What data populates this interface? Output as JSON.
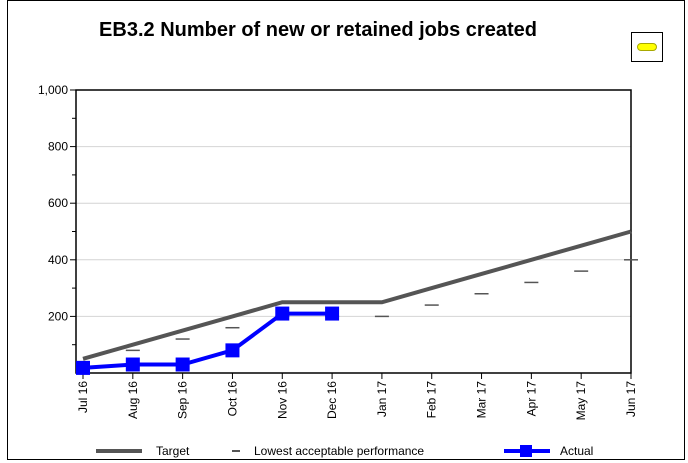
{
  "chart_data": {
    "type": "line",
    "title": "EB3.2 Number of new or retained jobs created",
    "categories": [
      "Jul 16",
      "Aug 16",
      "Sep 16",
      "Oct 16",
      "Nov 16",
      "Dec 16",
      "Jan 17",
      "Feb 17",
      "Mar 17",
      "Apr 17",
      "May 17",
      "Jun 17"
    ],
    "ylim": [
      0,
      1000
    ],
    "yticks": [
      200,
      400,
      600,
      800,
      1000
    ],
    "ytick_labels": [
      "200",
      "400",
      "600",
      "800",
      "1,000"
    ],
    "grid": true,
    "legend_position": "bottom",
    "series": [
      {
        "name": "Target",
        "style": "line",
        "color": "#555555",
        "values": [
          50,
          100,
          150,
          200,
          250,
          250,
          250,
          300,
          350,
          400,
          450,
          500
        ]
      },
      {
        "name": "Lowest acceptable performance",
        "style": "dash-marker",
        "color": "#555555",
        "values": [
          40,
          80,
          120,
          160,
          200,
          200,
          200,
          240,
          280,
          320,
          360,
          400
        ]
      },
      {
        "name": "Actual",
        "style": "line-square",
        "color": "#0000ff",
        "values": [
          18,
          30,
          30,
          80,
          210,
          210,
          null,
          null,
          null,
          null,
          null,
          null
        ]
      }
    ]
  },
  "status_indicator": {
    "color": "#ffff00",
    "icon": "yellow-status-pill"
  },
  "legend": {
    "target": "Target",
    "lowest": "Lowest acceptable performance",
    "actual": "Actual"
  }
}
